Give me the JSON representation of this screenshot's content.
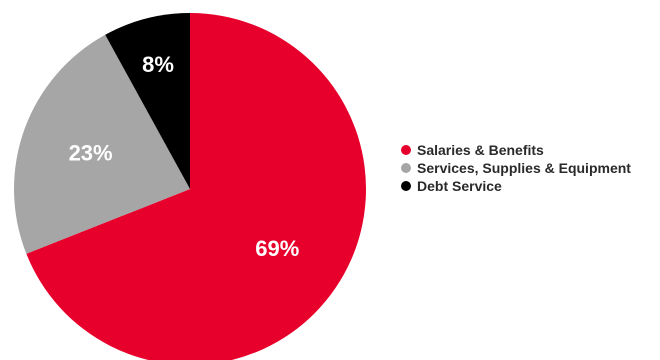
{
  "chart_data": {
    "type": "pie",
    "title": "",
    "series": [
      {
        "name": "Salaries & Benefits",
        "value": 69,
        "label": "69%",
        "color": "#e8002c"
      },
      {
        "name": "Services, Supplies & Equipment",
        "value": 23,
        "label": "23%",
        "color": "#a6a6a6"
      },
      {
        "name": "Debt Service",
        "value": 8,
        "label": "8%",
        "color": "#000000"
      }
    ],
    "legend_position": "right"
  }
}
